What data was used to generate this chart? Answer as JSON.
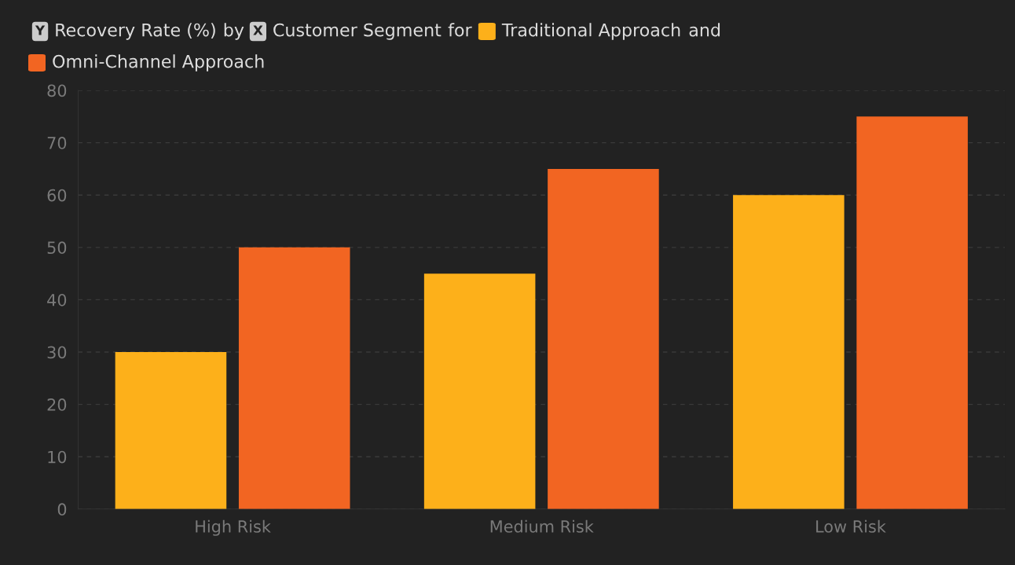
{
  "chart_data": {
    "type": "bar",
    "ylabel": "Recovery Rate (%)",
    "xlabel": "Customer Segment",
    "annotations": [
      "Y",
      "by",
      "X",
      "for",
      "and"
    ],
    "categories": [
      "High Risk",
      "Medium Risk",
      "Low Risk"
    ],
    "series": [
      {
        "name": "Traditional Approach",
        "color": "#fdb01a",
        "values": [
          30,
          45,
          60
        ]
      },
      {
        "name": "Omni-Channel Approach",
        "color": "#f26522",
        "values": [
          50,
          65,
          75
        ]
      }
    ],
    "ylim": [
      0,
      80
    ],
    "yticks": [
      0,
      10,
      20,
      30,
      40,
      50,
      60,
      70,
      80
    ],
    "grid": "y",
    "legend": "top"
  }
}
